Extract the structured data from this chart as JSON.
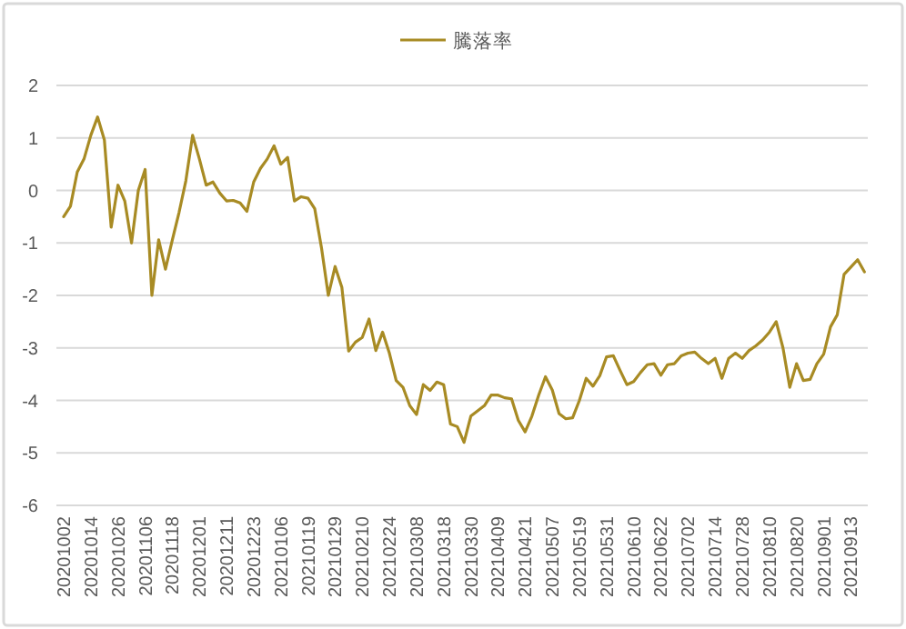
{
  "chart_data": {
    "type": "line",
    "categories": [
      "20201002",
      null,
      null,
      null,
      "20201014",
      null,
      null,
      null,
      "20201026",
      null,
      null,
      null,
      "20201106",
      null,
      null,
      null,
      "20201118",
      null,
      null,
      null,
      "20201201",
      null,
      null,
      null,
      "20201211",
      null,
      null,
      null,
      "20201223",
      null,
      null,
      null,
      "20210106",
      null,
      null,
      null,
      "20210119",
      null,
      null,
      null,
      "20210129",
      null,
      null,
      null,
      "20210210",
      null,
      null,
      null,
      "20210224",
      null,
      null,
      null,
      "20210308",
      null,
      null,
      null,
      "20210318",
      null,
      null,
      null,
      "20210330",
      null,
      null,
      null,
      "20210409",
      null,
      null,
      null,
      "20210421",
      null,
      null,
      null,
      "20210507",
      null,
      null,
      null,
      "20210519",
      null,
      null,
      null,
      "20210531",
      null,
      null,
      null,
      "20210610",
      null,
      null,
      null,
      "20210622",
      null,
      null,
      null,
      "20210702",
      null,
      null,
      null,
      "20210714",
      null,
      null,
      null,
      "20210728",
      null,
      null,
      null,
      "20210810",
      null,
      null,
      null,
      "20210820",
      null,
      null,
      null,
      "20210901",
      null,
      null,
      null,
      "20210913",
      null,
      null
    ],
    "series": [
      {
        "name": "騰落率",
        "color": "#a88b24",
        "values": [
          -0.5,
          -0.3,
          0.35,
          0.6,
          1.05,
          1.4,
          0.96,
          -0.7,
          0.1,
          -0.2,
          -1.0,
          0.0,
          0.4,
          -2.0,
          -0.94,
          -1.5,
          -0.95,
          -0.42,
          0.18,
          1.05,
          0.6,
          0.1,
          0.16,
          -0.05,
          -0.2,
          -0.19,
          -0.24,
          -0.4,
          0.16,
          0.42,
          0.6,
          0.85,
          0.5,
          0.63,
          -0.2,
          -0.12,
          -0.15,
          -0.35,
          -1.1,
          -2.0,
          -1.45,
          -1.85,
          -3.06,
          -2.89,
          -2.8,
          -2.45,
          -3.05,
          -2.7,
          -3.1,
          -3.62,
          -3.75,
          -4.1,
          -4.27,
          -3.7,
          -3.81,
          -3.65,
          -3.7,
          -4.45,
          -4.5,
          -4.8,
          -4.3,
          -4.2,
          -4.1,
          -3.9,
          -3.9,
          -3.95,
          -3.97,
          -4.38,
          -4.6,
          -4.3,
          -3.9,
          -3.55,
          -3.8,
          -4.25,
          -4.35,
          -4.33,
          -4.0,
          -3.58,
          -3.73,
          -3.53,
          -3.17,
          -3.15,
          -3.43,
          -3.7,
          -3.64,
          -3.47,
          -3.32,
          -3.3,
          -3.52,
          -3.32,
          -3.3,
          -3.15,
          -3.1,
          -3.08,
          -3.2,
          -3.3,
          -3.2,
          -3.58,
          -3.2,
          -3.1,
          -3.2,
          -3.05,
          -2.96,
          -2.85,
          -2.7,
          -2.5,
          -3.0,
          -3.75,
          -3.3,
          -3.62,
          -3.6,
          -3.3,
          -3.12,
          -2.6,
          -2.37,
          -1.6,
          -1.46,
          -1.32,
          -1.55
        ]
      }
    ],
    "ylim": [
      -6,
      2
    ],
    "yticks": [
      -6,
      -5,
      -4,
      -3,
      -2,
      -1,
      0,
      1,
      2
    ],
    "grid": "y",
    "legend": "top",
    "line_style": "solid",
    "marker": "none"
  }
}
